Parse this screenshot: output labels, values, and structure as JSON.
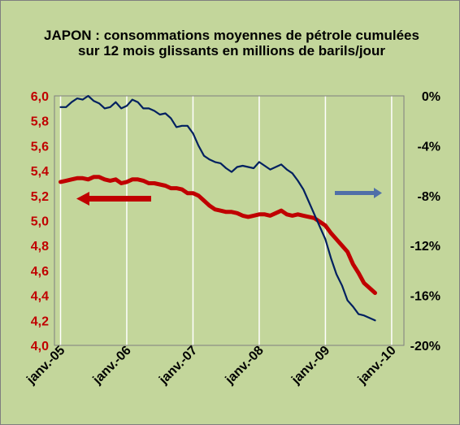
{
  "chart_data": {
    "type": "line",
    "title": "JAPON : consommations moyennes de pétrole cumulées sur 12 mois glissants en millions de barils/jour",
    "x_ticks": [
      "janv.-05",
      "janv.-06",
      "janv.-07",
      "janv.-08",
      "janv.-09",
      "janv.-10"
    ],
    "y_left": {
      "range": [
        4.0,
        6.0
      ],
      "ticks": [
        "6,0",
        "5,8",
        "5,6",
        "5,4",
        "5,2",
        "5,0",
        "4,8",
        "4,6",
        "4,4",
        "4,2",
        "4,0"
      ]
    },
    "y_right": {
      "range": [
        -20,
        0
      ],
      "ticks": [
        "0%",
        "-4%",
        "-8%",
        "-12%",
        "-16%",
        "-20%"
      ]
    },
    "grid": "vertical",
    "series": [
      {
        "axis": "left",
        "color": "#c00000",
        "legend_arrow": "left",
        "x": [
          "2005-01",
          "2005-02",
          "2005-03",
          "2005-04",
          "2005-05",
          "2005-06",
          "2005-07",
          "2005-08",
          "2005-09",
          "2005-10",
          "2005-11",
          "2005-12",
          "2006-01",
          "2006-02",
          "2006-03",
          "2006-04",
          "2006-05",
          "2006-06",
          "2006-07",
          "2006-08",
          "2006-09",
          "2006-10",
          "2006-11",
          "2006-12",
          "2007-01",
          "2007-02",
          "2007-03",
          "2007-04",
          "2007-05",
          "2007-06",
          "2007-07",
          "2007-08",
          "2007-09",
          "2007-10",
          "2007-11",
          "2007-12",
          "2008-01",
          "2008-02",
          "2008-03",
          "2008-04",
          "2008-05",
          "2008-06",
          "2008-07",
          "2008-08",
          "2008-09",
          "2008-10",
          "2008-11",
          "2008-12",
          "2009-01",
          "2009-02",
          "2009-03",
          "2009-04",
          "2009-05",
          "2009-06",
          "2009-07",
          "2009-08",
          "2009-09",
          "2009-10"
        ],
        "values": [
          5.31,
          5.32,
          5.33,
          5.34,
          5.34,
          5.33,
          5.35,
          5.35,
          5.33,
          5.32,
          5.33,
          5.3,
          5.31,
          5.33,
          5.33,
          5.32,
          5.3,
          5.3,
          5.29,
          5.28,
          5.26,
          5.26,
          5.25,
          5.22,
          5.22,
          5.2,
          5.16,
          5.12,
          5.09,
          5.08,
          5.07,
          5.07,
          5.06,
          5.04,
          5.03,
          5.04,
          5.05,
          5.05,
          5.04,
          5.06,
          5.08,
          5.05,
          5.04,
          5.05,
          5.04,
          5.03,
          5.02,
          4.99,
          4.96,
          4.9,
          4.85,
          4.8,
          4.75,
          4.65,
          4.58,
          4.5,
          4.46,
          4.42
        ]
      },
      {
        "axis": "right",
        "color": "#002060",
        "legend_arrow": "right",
        "x": [
          "2005-01",
          "2005-02",
          "2005-03",
          "2005-04",
          "2005-05",
          "2005-06",
          "2005-07",
          "2005-08",
          "2005-09",
          "2005-10",
          "2005-11",
          "2005-12",
          "2006-01",
          "2006-02",
          "2006-03",
          "2006-04",
          "2006-05",
          "2006-06",
          "2006-07",
          "2006-08",
          "2006-09",
          "2006-10",
          "2006-11",
          "2006-12",
          "2007-01",
          "2007-02",
          "2007-03",
          "2007-04",
          "2007-05",
          "2007-06",
          "2007-07",
          "2007-08",
          "2007-09",
          "2007-10",
          "2007-11",
          "2007-12",
          "2008-01",
          "2008-02",
          "2008-03",
          "2008-04",
          "2008-05",
          "2008-06",
          "2008-07",
          "2008-08",
          "2008-09",
          "2008-10",
          "2008-11",
          "2008-12",
          "2009-01",
          "2009-02",
          "2009-03",
          "2009-04",
          "2009-05",
          "2009-06",
          "2009-07",
          "2009-08",
          "2009-09",
          "2009-10"
        ],
        "values": [
          -0.9,
          -0.9,
          -0.5,
          -0.2,
          -0.3,
          0.0,
          -0.4,
          -0.6,
          -1.0,
          -0.9,
          -0.5,
          -1.0,
          -0.8,
          -0.3,
          -0.5,
          -1.0,
          -1.0,
          -1.2,
          -1.5,
          -1.4,
          -1.8,
          -2.5,
          -2.4,
          -2.4,
          -3.0,
          -4.0,
          -4.8,
          -5.1,
          -5.3,
          -5.4,
          -5.8,
          -6.1,
          -5.7,
          -5.6,
          -5.7,
          -5.8,
          -5.3,
          -5.6,
          -5.9,
          -5.7,
          -5.5,
          -5.9,
          -6.2,
          -6.8,
          -7.5,
          -8.5,
          -9.5,
          -10.5,
          -11.5,
          -13.0,
          -14.3,
          -15.2,
          -16.4,
          -16.9,
          -17.5,
          -17.6,
          -17.8,
          -18.0
        ]
      }
    ]
  }
}
